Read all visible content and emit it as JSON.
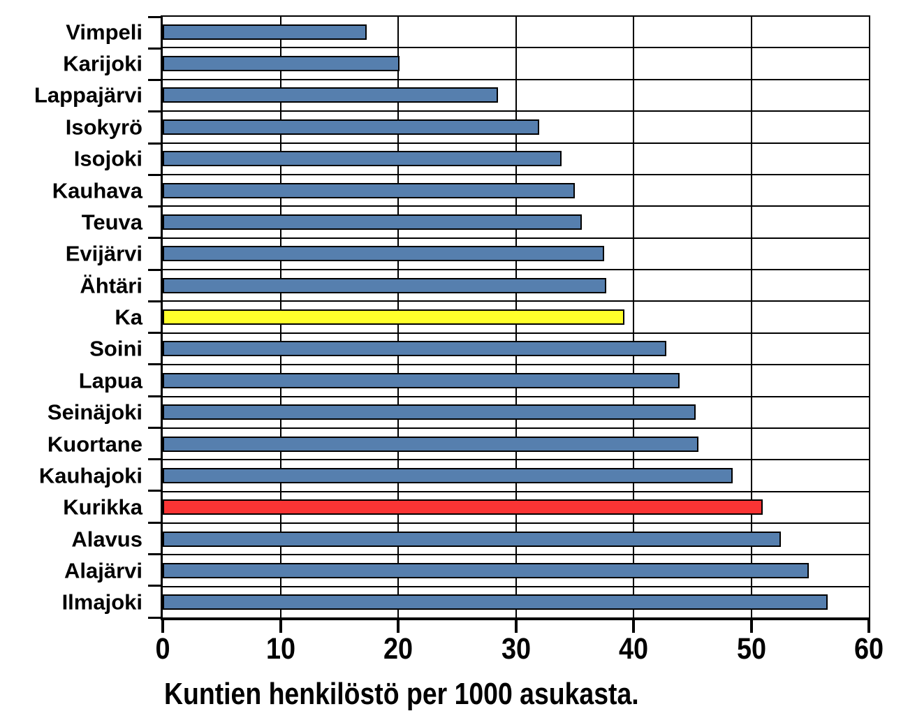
{
  "chart_data": {
    "type": "bar",
    "orientation": "horizontal",
    "title": "Kuntien henkilöstö per 1000 asukasta.",
    "categories": [
      "Vimpeli",
      "Karijoki",
      "Lappajärvi",
      "Isokyrö",
      "Isojoki",
      "Kauhava",
      "Teuva",
      "Evijärvi",
      "Ähtäri",
      "Ka",
      "Soini",
      "Lapua",
      "Seinäjoki",
      "Kuortane",
      "Kauhajoki",
      "Kurikka",
      "Alavus",
      "Alajärvi",
      "Ilmajoki"
    ],
    "values": [
      17.3,
      20.1,
      28.5,
      32.0,
      33.9,
      35.0,
      35.6,
      37.5,
      37.7,
      39.2,
      42.8,
      43.9,
      45.3,
      45.5,
      48.4,
      51.0,
      52.5,
      54.9,
      56.5
    ],
    "xlim": [
      0,
      60
    ],
    "xticks": [
      0,
      10,
      20,
      30,
      40,
      50,
      60
    ],
    "grid": true,
    "legend": "none",
    "colors": {
      "bar_default": "#567FAE",
      "bar_highlight_ka": "#FFFF2B",
      "bar_highlight_kurikka": "#FA3434",
      "outline": "#000000",
      "axis": "#000000",
      "background": "#FFFFFF"
    },
    "highlighted_bars": {
      "Ka": "bar_highlight_ka",
      "Kurikka": "bar_highlight_kurikka"
    }
  }
}
